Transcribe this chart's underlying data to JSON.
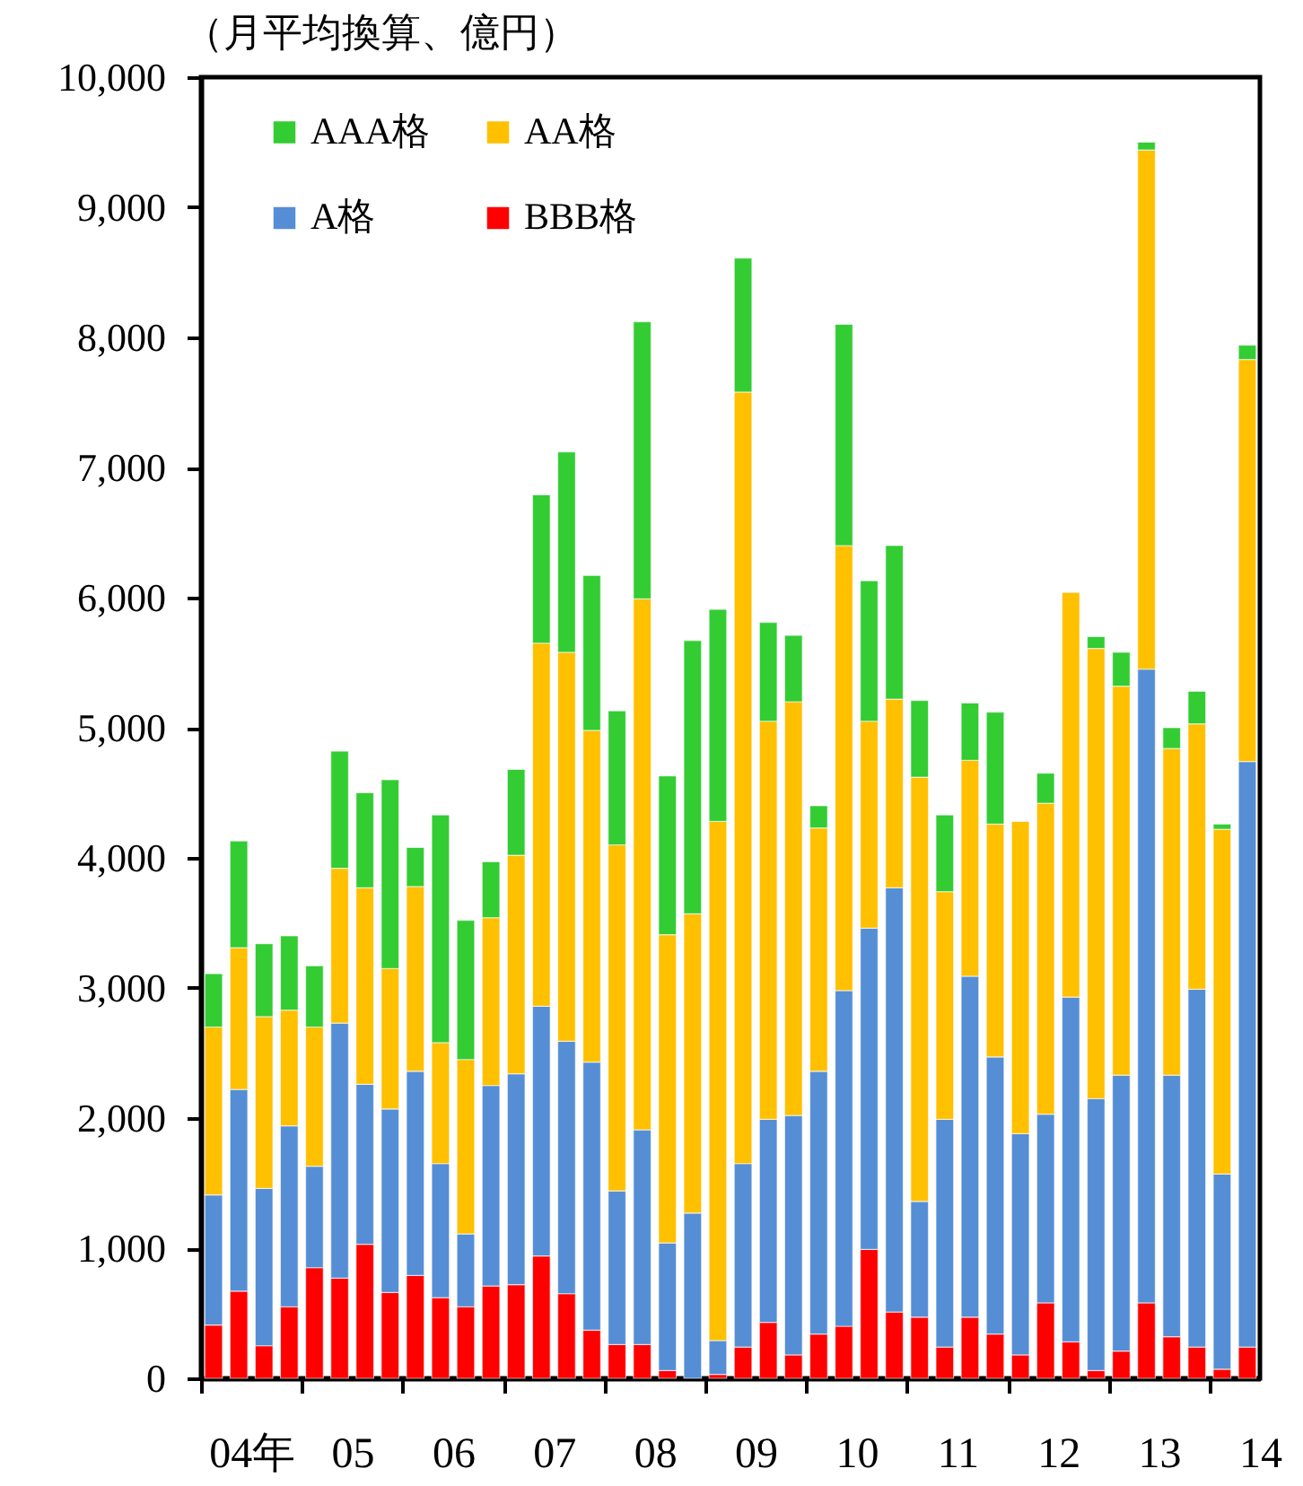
{
  "chart_data": {
    "type": "bar",
    "ylabel": "（月平均換算、億円）",
    "stacked": true,
    "legend": "top left",
    "categories": [
      null,
      "04年",
      null,
      null,
      null,
      "05",
      null,
      null,
      null,
      "06",
      null,
      null,
      null,
      "07",
      null,
      null,
      null,
      "08",
      null,
      null,
      null,
      "09",
      null,
      null,
      null,
      "10",
      null,
      null,
      null,
      "11",
      null,
      null,
      null,
      "12",
      null,
      null,
      null,
      "13",
      null,
      null,
      null,
      "14"
    ],
    "ylim": [
      0,
      10000
    ],
    "yticks": [
      0,
      {
        "value": 1000,
        "label": "1,000"
      },
      {
        "value": 2000,
        "label": "2,000"
      },
      {
        "value": 3000,
        "label": "3,000"
      },
      {
        "value": 4000,
        "label": "4,000"
      },
      {
        "value": 5000,
        "label": "5,000"
      },
      {
        "value": 6000,
        "label": "6,000"
      },
      {
        "value": 7000,
        "label": "7,000"
      },
      {
        "value": 8000,
        "label": "8,000"
      },
      {
        "value": 9000,
        "label": "9,000"
      },
      {
        "value": 10000,
        "label": "10,000"
      }
    ],
    "series": [
      {
        "name": "BBB格",
        "color": "#ff0000",
        "values": [
          410,
          670,
          250,
          550,
          850,
          770,
          1030,
          660,
          790,
          620,
          550,
          710,
          720,
          940,
          650,
          370,
          260,
          260,
          60,
          null,
          30,
          240,
          430,
          180,
          340,
          400,
          990,
          510,
          470,
          240,
          470,
          340,
          180,
          580,
          280,
          60,
          210,
          580,
          320,
          240,
          70,
          240
        ]
      },
      {
        "name": "A格",
        "color": "#558ed5",
        "values": [
          1000,
          1550,
          1210,
          1390,
          780,
          1960,
          1230,
          1410,
          1570,
          1030,
          560,
          1540,
          1620,
          1920,
          1940,
          2060,
          1180,
          1650,
          980,
          1270,
          260,
          1410,
          1560,
          1840,
          2020,
          2580,
          2470,
          3260,
          890,
          1750,
          2620,
          2130,
          1700,
          1450,
          2650,
          2090,
          2120,
          4870,
          2010,
          2750,
          1500,
          4500
        ]
      },
      {
        "name": "AA格",
        "color": "#ffc000",
        "values": [
          1290,
          1090,
          1320,
          890,
          1070,
          1190,
          1510,
          1080,
          1420,
          930,
          1340,
          1290,
          1680,
          2790,
          2990,
          2550,
          2660,
          4080,
          2370,
          2300,
          3990,
          5930,
          3060,
          3180,
          1870,
          3420,
          1590,
          1450,
          3260,
          1750,
          1660,
          1790,
          2400,
          2390,
          3110,
          3460,
          2990,
          3990,
          2510,
          2040,
          2650,
          3090
        ]
      },
      {
        "name": "AAA格",
        "color": "#33cc33",
        "values": [
          410,
          820,
          560,
          570,
          470,
          900,
          730,
          1450,
          300,
          1750,
          1070,
          430,
          660,
          1140,
          1540,
          1190,
          1030,
          2130,
          1220,
          2100,
          1630,
          1030,
          760,
          510,
          170,
          1700,
          1080,
          1180,
          590,
          590,
          440,
          860,
          null,
          230,
          null,
          90,
          260,
          60,
          160,
          250,
          40,
          110
        ]
      }
    ]
  }
}
